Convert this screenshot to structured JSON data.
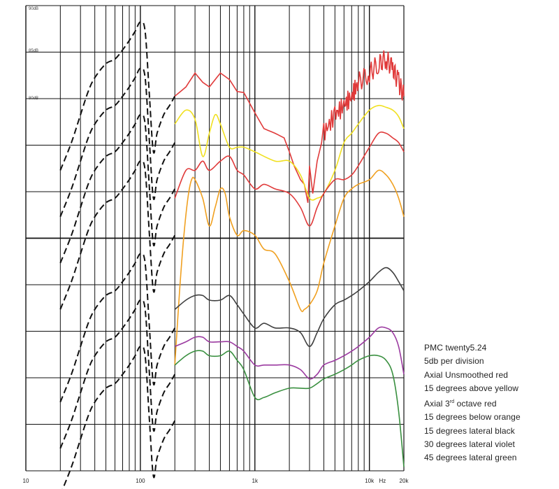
{
  "chart_data": {
    "type": "line",
    "x_scale": "log",
    "xlim": [
      10,
      20000
    ],
    "x_ticks": [
      {
        "value": 10,
        "label": "10"
      },
      {
        "value": 100,
        "label": "100"
      },
      {
        "value": 1000,
        "label": "1k"
      },
      {
        "value": 10000,
        "label": "10k"
      },
      {
        "value": 13000,
        "label": "Hz"
      },
      {
        "value": 20000,
        "label": "20k"
      }
    ],
    "y_ticks": [
      {
        "label": "90dB"
      },
      {
        "label": "85dB"
      },
      {
        "label": "80dB"
      }
    ],
    "grid": true,
    "legend_lines": [
      {
        "text": "PMC twenty5.24"
      },
      {
        "text": "5db per division"
      },
      {
        "text": "Axial Unsmoothed red"
      },
      {
        "text": "15 degrees above yellow"
      },
      {
        "text": "Axial 3",
        "sup": "rd",
        "after": " octave red"
      },
      {
        "text": "15 degrees below orange"
      },
      {
        "text": "15 degrees lateral black"
      },
      {
        "text": "30 degrees lateral violet"
      },
      {
        "text": "45 degrees lateral green"
      }
    ],
    "series": [
      {
        "color": "#e03a3a",
        "unsmoothed": true,
        "offset_db": 0,
        "x": [
          200,
          250,
          300,
          350,
          400,
          500,
          600,
          700,
          800,
          1000,
          1200,
          1500,
          1800,
          2000,
          2200,
          2500,
          2700,
          2900,
          3000,
          3200,
          3500,
          4000,
          5000,
          6000,
          7000,
          8000,
          10000,
          12000,
          14000,
          16000,
          18000,
          20000
        ],
        "y": [
          88,
          89,
          90.5,
          89.5,
          89,
          90.5,
          89.8,
          88.5,
          88.4,
          86.2,
          84.5,
          84,
          83.5,
          82,
          80.5,
          79,
          78.5,
          76.5,
          80.5,
          77.5,
          81,
          84,
          86,
          87,
          88,
          89.5,
          90.5,
          91.5,
          92,
          91,
          89.5,
          88
        ]
      },
      {
        "color": "#f0e020",
        "offset_db": -5,
        "x": [
          200,
          250,
          300,
          350,
          400,
          450,
          500,
          600,
          700,
          800,
          1000,
          1500,
          2000,
          2500,
          3000,
          3500,
          4000,
          5000,
          6000,
          7000,
          8000,
          10000,
          12000,
          14000,
          16000,
          18000,
          20000
        ],
        "y": [
          90,
          91.5,
          90.5,
          86.5,
          89,
          91,
          90,
          87.5,
          87.5,
          87.5,
          87,
          86,
          86,
          84.5,
          82,
          82,
          82.5,
          85,
          88,
          89,
          90,
          91.5,
          92,
          91.8,
          91.5,
          90.8,
          89.5
        ]
      },
      {
        "color": "#e03a3a",
        "offset_db": -10,
        "x": [
          200,
          250,
          300,
          350,
          400,
          500,
          600,
          700,
          800,
          1000,
          1200,
          1500,
          2000,
          2500,
          3000,
          3500,
          4000,
          5000,
          6000,
          7000,
          8000,
          10000,
          12000,
          14000,
          16000,
          18000,
          20000
        ],
        "y": [
          87,
          90,
          90,
          91,
          90,
          91,
          91.5,
          90,
          89.5,
          88,
          88.5,
          88,
          87.5,
          86,
          84,
          86,
          87.5,
          89,
          89,
          89.5,
          90.5,
          92.5,
          94,
          94,
          93.5,
          93,
          92
        ]
      },
      {
        "color": "#f0a020",
        "offset_db": -15,
        "x": [
          200,
          220,
          240,
          260,
          280,
          300,
          350,
          400,
          450,
          500,
          550,
          600,
          700,
          800,
          1000,
          1200,
          1500,
          2000,
          2500,
          2700,
          3000,
          3500,
          4000,
          5000,
          6000,
          7000,
          8000,
          10000,
          12000,
          14000,
          16000,
          18000,
          20000
        ],
        "y": [
          74,
          82,
          88,
          92,
          94,
          94,
          92,
          89,
          91,
          93,
          92.5,
          90,
          88,
          88.5,
          88,
          86.5,
          86,
          83,
          80,
          80,
          80.5,
          82,
          85,
          89,
          92,
          93,
          93.5,
          94,
          95,
          94.5,
          93.5,
          92,
          90
        ]
      },
      {
        "color": "#404040",
        "offset_db": -25,
        "x": [
          200,
          250,
          300,
          350,
          400,
          500,
          600,
          700,
          800,
          1000,
          1200,
          1500,
          2000,
          2500,
          3000,
          3500,
          4000,
          5000,
          6000,
          7000,
          8000,
          10000,
          12000,
          14000,
          16000,
          18000,
          20000
        ],
        "y": [
          90,
          91,
          91.5,
          91.5,
          91,
          91,
          91.5,
          90.5,
          89.5,
          88,
          88.5,
          88,
          88,
          87.5,
          86,
          87.5,
          89,
          90.5,
          91,
          91.5,
          92,
          93,
          94,
          94.5,
          94,
          93,
          92
        ]
      },
      {
        "color": "#9b3aa0",
        "offset_db": -30,
        "x": [
          200,
          250,
          300,
          350,
          400,
          500,
          600,
          700,
          800,
          1000,
          1200,
          1500,
          2000,
          2500,
          3000,
          3500,
          4000,
          5000,
          6000,
          7000,
          8000,
          10000,
          12000,
          14000,
          16000,
          18000,
          20000
        ],
        "y": [
          91,
          91.5,
          92,
          92,
          91.5,
          91.5,
          91.5,
          91,
          90.5,
          89,
          89,
          89,
          89,
          88.5,
          87.5,
          88,
          89,
          89.5,
          90,
          90.5,
          91,
          92,
          93,
          93,
          92.5,
          91,
          88
        ]
      },
      {
        "color": "#3a9040",
        "offset_db": -35,
        "x": [
          200,
          250,
          300,
          350,
          400,
          500,
          600,
          700,
          800,
          1000,
          1200,
          1500,
          2000,
          2500,
          3000,
          3500,
          4000,
          5000,
          6000,
          7000,
          8000,
          10000,
          12000,
          14000,
          16000,
          18000,
          20000
        ],
        "y": [
          94,
          95,
          95.5,
          95.5,
          95,
          95,
          95.5,
          94.5,
          93.5,
          90.5,
          90.5,
          91,
          91.5,
          91.5,
          91.5,
          92,
          92.5,
          93,
          93.5,
          94,
          94.5,
          95,
          95,
          94.5,
          93,
          89,
          83
        ]
      }
    ],
    "low_frequency_dashed": {
      "x": [
        20,
        25,
        30,
        35,
        40,
        50,
        60,
        70,
        80,
        90,
        100,
        110,
        120,
        130,
        140,
        160,
        180,
        200
      ],
      "y": [
        80,
        83,
        86,
        88.5,
        90,
        91.5,
        92,
        93,
        94,
        95,
        96,
        95,
        88,
        82,
        84,
        86,
        87,
        88
      ],
      "offsets_db": [
        0,
        -5,
        -10,
        -15,
        -25,
        -30,
        -35
      ]
    }
  }
}
